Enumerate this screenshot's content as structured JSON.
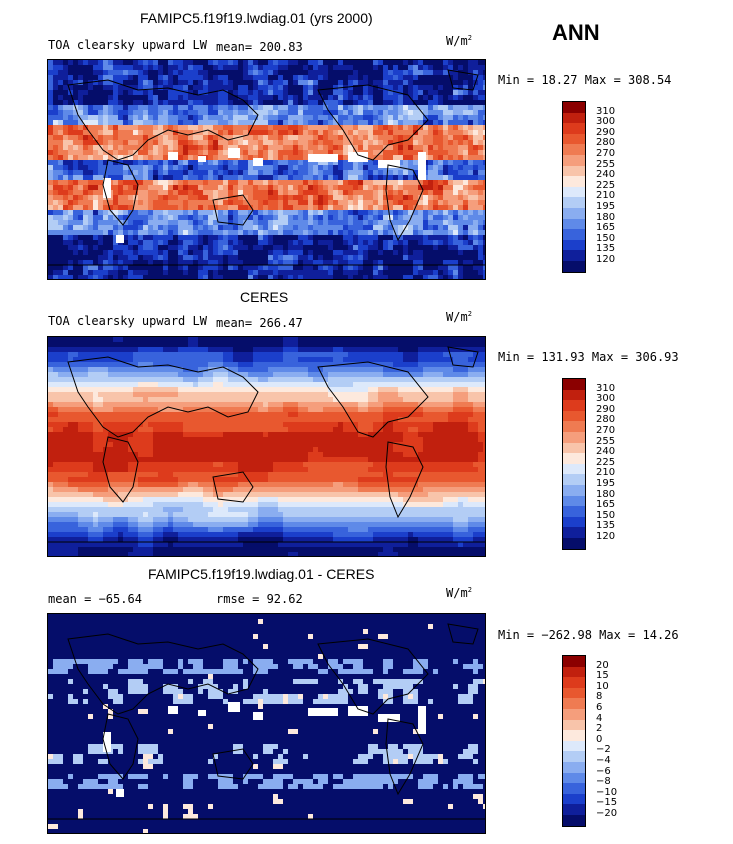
{
  "header": {
    "season": "ANN"
  },
  "panels": [
    {
      "title": "FAMIPC5.f19f19.lwdiag.01 (yrs 2000)",
      "left_label": "TOA clearsky upward LW",
      "mean_label": "mean= 200.83",
      "units_base": "W/m",
      "units_exp": "2",
      "minmax": "Min =  18.27 Max = 308.54",
      "colorbar_labels": [
        "310",
        "300",
        "290",
        "280",
        "270",
        "255",
        "240",
        "225",
        "210",
        "195",
        "180",
        "165",
        "150",
        "135",
        "120"
      ],
      "palette": "abs"
    },
    {
      "title": "CERES",
      "left_label": "TOA clearsky upward LW",
      "mean_label": "mean= 266.47",
      "units_base": "W/m",
      "units_exp": "2",
      "minmax": "Min = 131.93 Max = 306.93",
      "colorbar_labels": [
        "310",
        "300",
        "290",
        "280",
        "270",
        "255",
        "240",
        "225",
        "210",
        "195",
        "180",
        "165",
        "150",
        "135",
        "120"
      ],
      "palette": "abs"
    },
    {
      "title": "FAMIPC5.f19f19.lwdiag.01 - CERES",
      "left_label": "mean = −65.64",
      "mean_label": "rmse =   92.62",
      "units_base": "W/m",
      "units_exp": "2",
      "minmax": "Min = −262.98 Max =  14.26",
      "colorbar_labels": [
        "20",
        "15",
        "10",
        "8",
        "6",
        "4",
        "2",
        "0",
        "−2",
        "−4",
        "−6",
        "−8",
        "−10",
        "−15",
        "−20"
      ],
      "palette": "diff"
    }
  ],
  "colors": {
    "scale": [
      "#8b0000",
      "#c1200e",
      "#dd3b1c",
      "#e8582f",
      "#ef7b52",
      "#f59e7c",
      "#f8c4aa",
      "#fde9dd",
      "#dde9fb",
      "#b3cdf5",
      "#8aadf0",
      "#5f8ae8",
      "#3863dc",
      "#1b3fcb",
      "#0f1f9b",
      "#050d6a"
    ]
  }
}
